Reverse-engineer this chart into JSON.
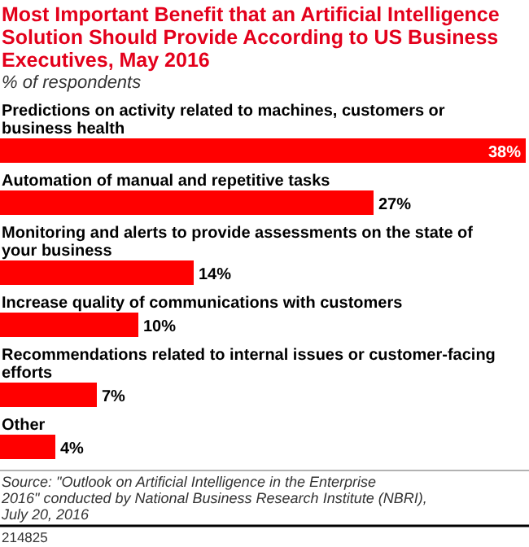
{
  "chart_data": {
    "type": "bar",
    "orientation": "horizontal",
    "title": "Most Important Benefit that an Artificial Intelligence Solution Should Provide According to US Business Executives, May 2016",
    "subtitle": "% of respondents",
    "categories": [
      "Predictions on activity related to machines, customers or business health",
      "Automation of manual and repetitive tasks",
      "Monitoring and alerts to provide assessments on the state of your business",
      "Increase quality of communications with customers",
      "Recommendations related to internal issues or customer-facing efforts",
      "Other"
    ],
    "values": [
      38,
      27,
      14,
      10,
      7,
      4
    ],
    "value_labels": [
      "38%",
      "27%",
      "14%",
      "10%",
      "7%",
      "4%"
    ],
    "color": "#ff0000",
    "annotations": [
      "Source: \"Outlook on Artificial Intelligence in the Enterprise 2016\" conducted by National Business Research Institute (NBRI), July 20, 2016",
      "214825"
    ]
  }
}
